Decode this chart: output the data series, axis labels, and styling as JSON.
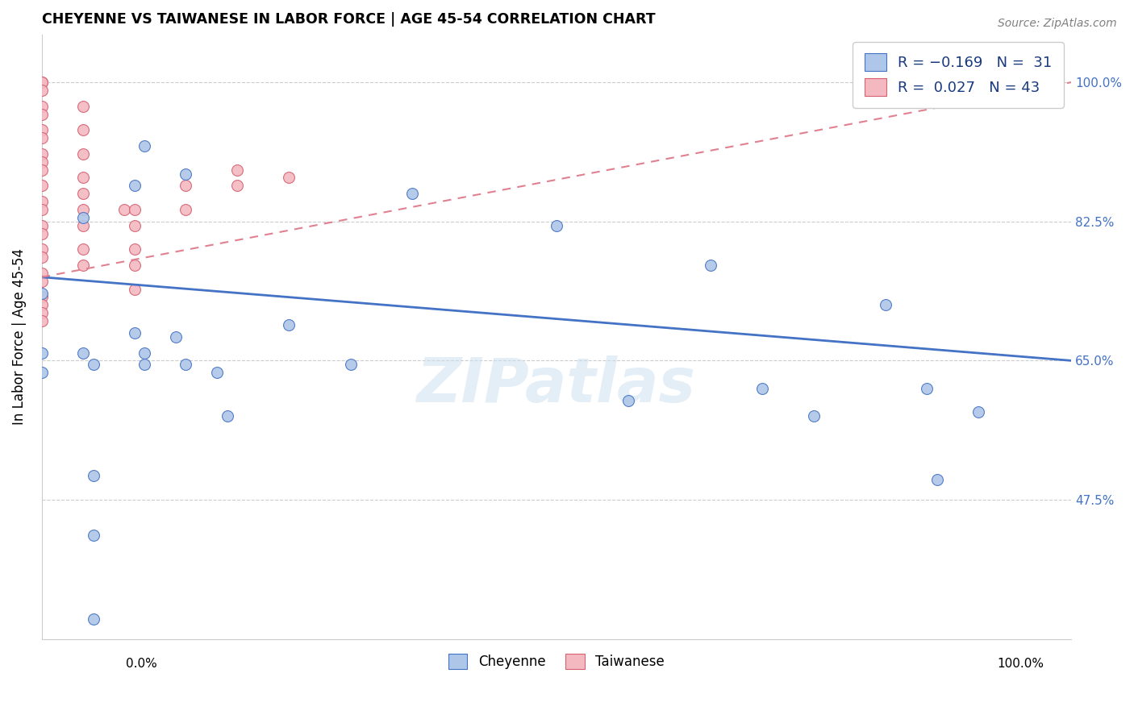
{
  "title": "CHEYENNE VS TAIWANESE IN LABOR FORCE | AGE 45-54 CORRELATION CHART",
  "source": "Source: ZipAtlas.com",
  "ylabel": "In Labor Force | Age 45-54",
  "ytick_vals": [
    0.475,
    0.65,
    0.825,
    1.0
  ],
  "ytick_labels": [
    "47.5%",
    "65.0%",
    "82.5%",
    "100.0%"
  ],
  "xlim": [
    0.0,
    1.0
  ],
  "ylim": [
    0.3,
    1.06
  ],
  "cheyenne_color": "#aec6e8",
  "cheyenne_edge_color": "#4472c4",
  "taiwanese_color": "#f4b8c1",
  "taiwanese_edge_color": "#d46070",
  "trend_cheyenne_color": "#4472c4",
  "trend_taiwanese_color": "#e08090",
  "cheyenne_x": [
    0.0,
    0.0,
    0.0,
    0.04,
    0.04,
    0.05,
    0.05,
    0.09,
    0.09,
    0.1,
    0.1,
    0.13,
    0.14,
    0.17,
    0.18,
    0.24,
    0.3,
    0.36,
    0.5,
    0.57,
    0.65,
    0.7,
    0.75,
    0.82,
    0.86,
    0.87,
    0.91,
    0.1,
    0.05,
    0.05,
    0.14
  ],
  "cheyenne_y": [
    0.735,
    0.66,
    0.635,
    0.83,
    0.66,
    0.645,
    0.43,
    0.87,
    0.685,
    0.66,
    0.645,
    0.68,
    0.645,
    0.635,
    0.58,
    0.695,
    0.645,
    0.86,
    0.82,
    0.6,
    0.77,
    0.615,
    0.58,
    0.72,
    0.615,
    0.5,
    0.585,
    0.92,
    0.505,
    0.325,
    0.885
  ],
  "taiwanese_x": [
    0.0,
    0.0,
    0.0,
    0.0,
    0.0,
    0.0,
    0.0,
    0.0,
    0.0,
    0.0,
    0.0,
    0.0,
    0.0,
    0.0,
    0.0,
    0.0,
    0.0,
    0.0,
    0.0,
    0.0,
    0.0,
    0.0,
    0.0,
    0.04,
    0.04,
    0.04,
    0.04,
    0.04,
    0.04,
    0.04,
    0.04,
    0.04,
    0.08,
    0.09,
    0.09,
    0.09,
    0.09,
    0.09,
    0.14,
    0.14,
    0.19,
    0.19,
    0.24
  ],
  "taiwanese_y": [
    1.0,
    1.0,
    0.99,
    0.97,
    0.96,
    0.94,
    0.93,
    0.91,
    0.9,
    0.89,
    0.87,
    0.85,
    0.84,
    0.82,
    0.81,
    0.79,
    0.78,
    0.76,
    0.75,
    0.73,
    0.72,
    0.71,
    0.7,
    0.97,
    0.94,
    0.91,
    0.88,
    0.86,
    0.84,
    0.82,
    0.79,
    0.77,
    0.84,
    0.84,
    0.82,
    0.79,
    0.77,
    0.74,
    0.87,
    0.84,
    0.89,
    0.87,
    0.88
  ],
  "marker_size": 100,
  "watermark": "ZIPatlas",
  "grid_color": "#cccccc",
  "background_color": "#ffffff",
  "trend_ch_x0": 0.0,
  "trend_ch_y0": 0.755,
  "trend_ch_x1": 1.0,
  "trend_ch_y1": 0.65,
  "trend_tw_x0": 0.0,
  "trend_tw_y0": 0.755,
  "trend_tw_x1": 1.0,
  "trend_tw_y1": 1.0
}
